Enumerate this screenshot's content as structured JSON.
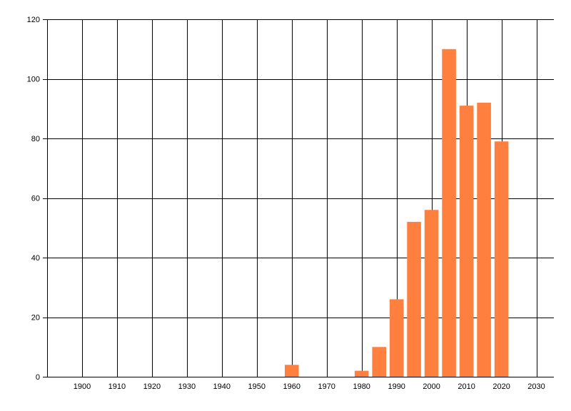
{
  "chart_data": {
    "type": "bar",
    "title": "",
    "xlabel": "",
    "ylabel": "",
    "x": [
      1960,
      1980,
      1985,
      1990,
      1995,
      2000,
      2005,
      2010,
      2015,
      2020
    ],
    "values": [
      4,
      2,
      10,
      26,
      52,
      56,
      110,
      91,
      92,
      79
    ],
    "xlim": [
      1890,
      2035
    ],
    "ylim": [
      0,
      120
    ],
    "x_ticks": [
      1900,
      1910,
      1920,
      1930,
      1940,
      1950,
      1960,
      1970,
      1980,
      1990,
      2000,
      2010,
      2020,
      2030
    ],
    "y_ticks": [
      0,
      20,
      40,
      60,
      80,
      100,
      120
    ],
    "bar_width_years": 4,
    "grid": true,
    "legend": "none",
    "bar_color": "#ff7f3f"
  }
}
